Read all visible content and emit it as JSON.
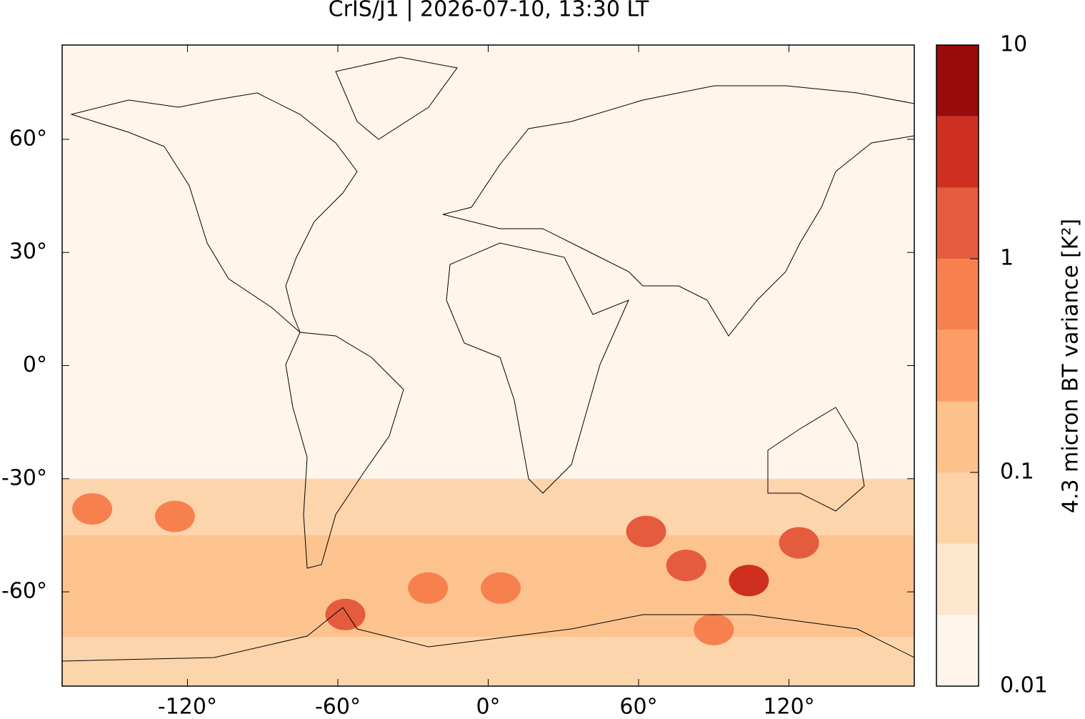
{
  "chart_data": {
    "type": "map",
    "title": "CrIS/J1 | 2026-07-10, 13:30 LT",
    "xlim": [
      -170,
      170
    ],
    "ylim": [
      -85,
      85
    ],
    "xticks": [
      {
        "value": -120,
        "label": "-120°"
      },
      {
        "value": -60,
        "label": "-60°"
      },
      {
        "value": 0,
        "label": "0°"
      },
      {
        "value": 60,
        "label": "60°"
      },
      {
        "value": 120,
        "label": "120°"
      }
    ],
    "yticks": [
      {
        "value": -60,
        "label": "-60°"
      },
      {
        "value": -30,
        "label": "-30°"
      },
      {
        "value": 0,
        "label": "0°"
      },
      {
        "value": 30,
        "label": "30°"
      },
      {
        "value": 60,
        "label": "60°"
      }
    ],
    "background_value": 0.012,
    "regions": [
      {
        "lon": [
          -170,
          170
        ],
        "lat": [
          -30,
          -85
        ],
        "value": 0.05
      },
      {
        "lon": [
          -170,
          170
        ],
        "lat": [
          -45,
          -72
        ],
        "value": 0.12
      }
    ],
    "hotspots": {
      "x": [
        -158,
        -125,
        -57,
        -24,
        63,
        79,
        104,
        124,
        5,
        90
      ],
      "y": [
        -38,
        -40,
        -66,
        -59,
        -44,
        -53,
        -57,
        -47,
        -59,
        -70
      ],
      "values": [
        0.8,
        0.8,
        1.5,
        0.8,
        2,
        1,
        2.5,
        1.5,
        0.5,
        0.6
      ]
    },
    "colorbar": {
      "label": "4.3 micron BT variance [K²]",
      "log": true,
      "levels": [
        0.01,
        0.0215,
        0.0464,
        0.1,
        0.215,
        0.464,
        1,
        2.15,
        4.64,
        10
      ],
      "colors": [
        "#fff5eb",
        "#fee6ce",
        "#fdd2a6",
        "#fdc18b",
        "#fc9d65",
        "#f7814e",
        "#e55b3e",
        "#cf2f20",
        "#9b0a0a"
      ],
      "ticks": [
        0.01,
        0.1,
        1,
        10
      ]
    }
  }
}
